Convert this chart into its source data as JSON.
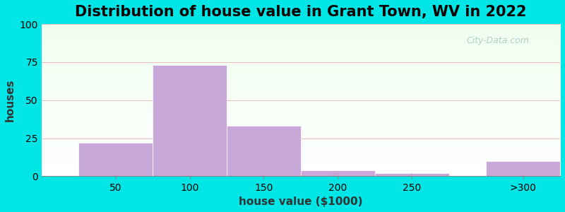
{
  "title": "Distribution of house value in Grant Town, WV in 2022",
  "xlabel": "house value ($1000)",
  "ylabel": "houses",
  "bar_left_edges": [
    25,
    75,
    125,
    175,
    225,
    300
  ],
  "bar_widths": [
    50,
    50,
    50,
    50,
    50,
    50
  ],
  "bar_heights": [
    22,
    73,
    33,
    4,
    2,
    10
  ],
  "bar_color": "#c8a8d8",
  "xtick_positions": [
    50,
    100,
    150,
    200,
    250,
    325
  ],
  "xtick_labels": [
    "50",
    "100",
    "150",
    "200",
    "250",
    ">300"
  ],
  "ytick_positions": [
    0,
    25,
    50,
    75,
    100
  ],
  "ytick_labels": [
    "0",
    "25",
    "50",
    "75",
    "100"
  ],
  "xlim": [
    0,
    350
  ],
  "ylim": [
    0,
    100
  ],
  "background_color": "#00e5e5",
  "grid_color": "#e8c0c0",
  "title_fontsize": 15,
  "axis_label_fontsize": 11,
  "tick_fontsize": 10
}
